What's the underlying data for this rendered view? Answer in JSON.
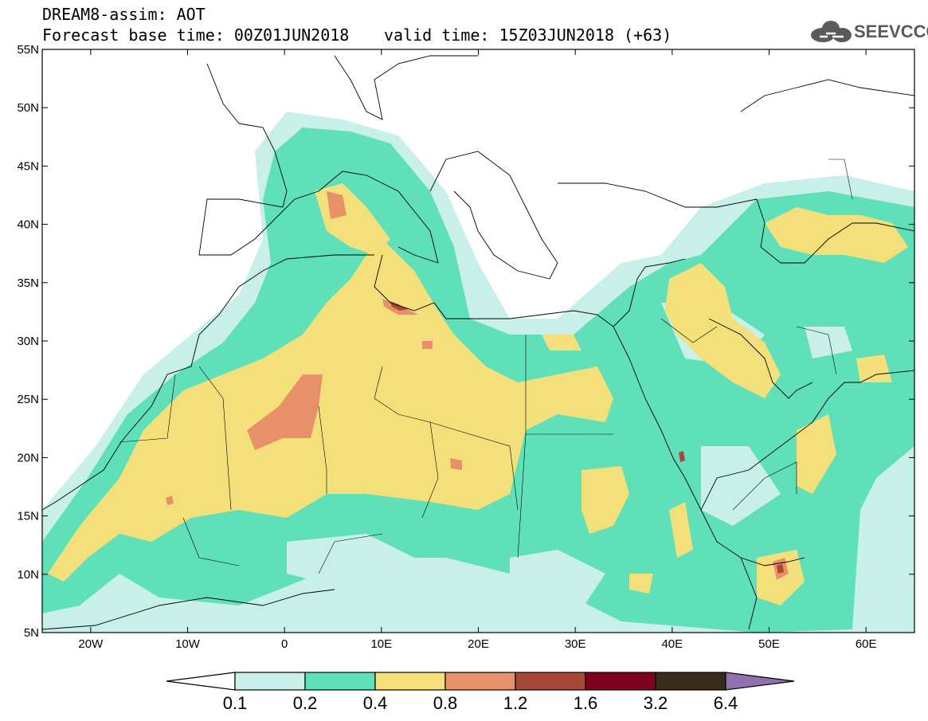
{
  "header": {
    "line1": "DREAM8-assim: AOT",
    "line2": "Forecast base time: 00Z01JUN2018",
    "valid": "valid time: 15Z03JUN2018 (+63)"
  },
  "logo": {
    "text": "SEEVCCC",
    "icon": "cloud-icon"
  },
  "map": {
    "lon_range": [
      -25,
      65
    ],
    "lat_range": [
      5,
      55
    ],
    "lat_ticks": [
      "5N",
      "10N",
      "15N",
      "20N",
      "25N",
      "30N",
      "35N",
      "40N",
      "45N",
      "50N",
      "55N"
    ],
    "lon_ticks": [
      "20W",
      "10W",
      "0",
      "10E",
      "20E",
      "30E",
      "40E",
      "50E",
      "60E"
    ]
  },
  "colorbar": {
    "labels": [
      "0.1",
      "0.2",
      "0.4",
      "0.8",
      "1.2",
      "1.6",
      "3.2",
      "6.4"
    ],
    "colors": [
      "#ffffff",
      "#c8f0e8",
      "#5fe0b8",
      "#f4e07a",
      "#e8906a",
      "#a84838",
      "#800020",
      "#3a2a1a",
      "#9070b0"
    ]
  }
}
